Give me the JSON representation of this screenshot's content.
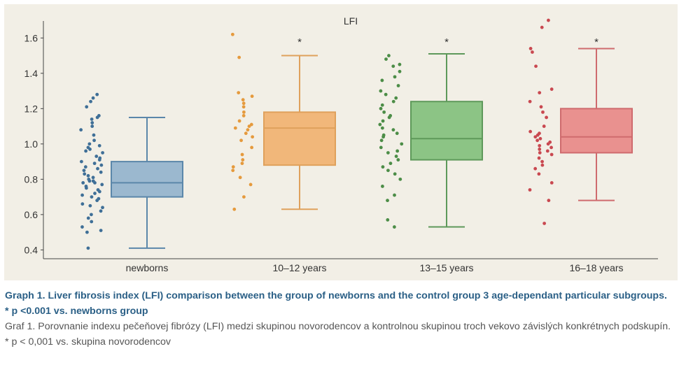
{
  "chart_data": {
    "type": "box",
    "title": "LFI",
    "categories": [
      "newborns",
      "10–12 years",
      "13–15 years",
      "16–18 years"
    ],
    "ylim": [
      0.35,
      1.72
    ],
    "yticks": [
      0.4,
      0.6,
      0.8,
      1.0,
      1.2,
      1.4,
      1.6
    ],
    "ytick_labels": [
      "0.4",
      "0.6",
      "0.8",
      "1.0",
      "1.2",
      "1.4",
      "1.6"
    ],
    "grid": false,
    "colors": {
      "newborns": {
        "fill": "#9bb8cf",
        "edge": "#5b87aa",
        "dot": "#3f6f97"
      },
      "10–12 years": {
        "fill": "#f1b77a",
        "edge": "#dfa15c",
        "dot": "#e59a3d"
      },
      "13–15 years": {
        "fill": "#8cc485",
        "edge": "#5e995a",
        "dot": "#4c8d47"
      },
      "16–18 years": {
        "fill": "#e9918f",
        "edge": "#cf6b6e",
        "dot": "#c94850"
      }
    },
    "boxes": [
      {
        "category": "newborns",
        "whisker_low": 0.41,
        "q1": 0.7,
        "median": 0.78,
        "q3": 0.9,
        "whisker_high": 1.15,
        "significance": ""
      },
      {
        "category": "10–12 years",
        "whisker_low": 0.63,
        "q1": 0.88,
        "median": 1.09,
        "q3": 1.18,
        "whisker_high": 1.5,
        "significance": "*"
      },
      {
        "category": "13–15 years",
        "whisker_low": 0.53,
        "q1": 0.91,
        "median": 1.03,
        "q3": 1.24,
        "whisker_high": 1.51,
        "significance": "*"
      },
      {
        "category": "16–18 years",
        "whisker_low": 0.68,
        "q1": 0.95,
        "median": 1.04,
        "q3": 1.2,
        "whisker_high": 1.54,
        "significance": "*"
      }
    ],
    "points": {
      "newborns": [
        1.28,
        1.26,
        1.24,
        1.21,
        1.16,
        1.15,
        1.14,
        1.12,
        1.1,
        1.08,
        1.05,
        1.02,
        1.0,
        0.99,
        0.98,
        0.97,
        0.96,
        0.95,
        0.93,
        0.92,
        0.91,
        0.9,
        0.89,
        0.88,
        0.87,
        0.86,
        0.85,
        0.84,
        0.83,
        0.82,
        0.81,
        0.8,
        0.79,
        0.79,
        0.78,
        0.78,
        0.77,
        0.76,
        0.75,
        0.74,
        0.73,
        0.72,
        0.71,
        0.7,
        0.69,
        0.68,
        0.66,
        0.65,
        0.64,
        0.62,
        0.6,
        0.58,
        0.56,
        0.53,
        0.51,
        0.5,
        0.41
      ],
      "10–12 years": [
        1.62,
        1.49,
        1.29,
        1.27,
        1.25,
        1.23,
        1.21,
        1.18,
        1.16,
        1.13,
        1.11,
        1.1,
        1.09,
        1.08,
        1.06,
        1.04,
        1.02,
        0.98,
        0.94,
        0.91,
        0.89,
        0.87,
        0.85,
        0.81,
        0.77,
        0.7,
        0.63
      ],
      "13–15 years": [
        1.5,
        1.48,
        1.45,
        1.44,
        1.41,
        1.38,
        1.36,
        1.33,
        1.3,
        1.28,
        1.26,
        1.24,
        1.22,
        1.2,
        1.18,
        1.16,
        1.15,
        1.13,
        1.11,
        1.09,
        1.08,
        1.06,
        1.05,
        1.04,
        1.02,
        1.0,
        0.98,
        0.96,
        0.95,
        0.93,
        0.91,
        0.89,
        0.87,
        0.85,
        0.83,
        0.8,
        0.76,
        0.71,
        0.68,
        0.57,
        0.53
      ],
      "16–18 years": [
        1.7,
        1.66,
        1.54,
        1.52,
        1.44,
        1.31,
        1.29,
        1.24,
        1.21,
        1.18,
        1.15,
        1.1,
        1.07,
        1.06,
        1.05,
        1.04,
        1.03,
        1.02,
        1.01,
        1.0,
        0.99,
        0.98,
        0.97,
        0.96,
        0.95,
        0.94,
        0.92,
        0.9,
        0.88,
        0.86,
        0.83,
        0.78,
        0.74,
        0.68,
        0.55
      ]
    }
  },
  "caption": {
    "en_title": "Graph 1. Liver fibrosis index (LFI) comparison between the group of newborns and the control group 3 age-dependant particular subgroups.",
    "en_note": "* p <0.001 vs. newborns group",
    "sk_title": "Graf 1. Porovnanie indexu pečeňovej fibrózy (LFI) medzi skupinou novorodencov a kontrolnou skupinou troch vekovo závislých konkrétnych podskupín.",
    "sk_note": "* p < 0,001 vs. skupina novorodencov"
  }
}
